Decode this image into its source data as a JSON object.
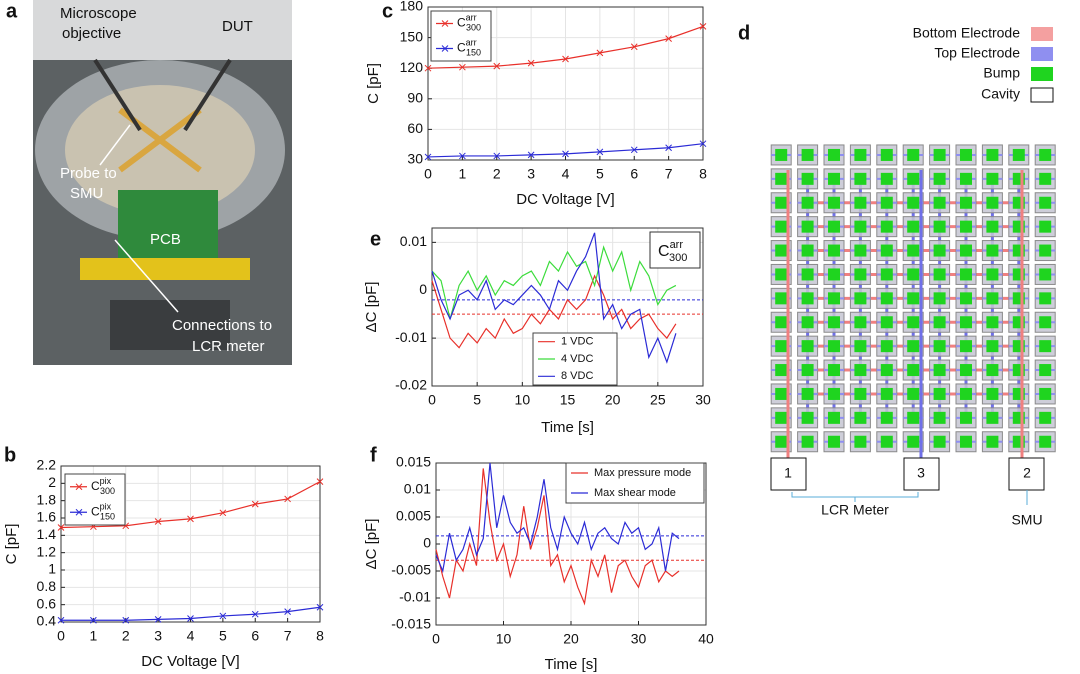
{
  "panel_labels": [
    "a",
    "b",
    "c",
    "d",
    "e",
    "f"
  ],
  "photo": {
    "annotations": [
      "Microscope",
      "objective",
      "DUT",
      "Probe to",
      "SMU",
      "PCB",
      "Connections to",
      "LCR meter"
    ]
  },
  "diagram": {
    "legend": [
      "Bottom Electrode",
      "Top Electrode",
      "Bump",
      "Cavity"
    ],
    "terminals": [
      "1",
      "3",
      "2"
    ],
    "lcr_label": "LCR Meter",
    "smu_label": "SMU"
  },
  "chart_data": [
    {
      "type": "line",
      "xlabel": "DC Voltage [V]",
      "ylabel": "C [pF]",
      "x": [
        0,
        1,
        2,
        3,
        4,
        5,
        6,
        7,
        8
      ],
      "series": [
        {
          "name": "C",
          "name_superscript": "pix",
          "name_subscript": "300",
          "color": "#e8302a",
          "values": [
            1.49,
            1.5,
            1.51,
            1.56,
            1.59,
            1.66,
            1.76,
            1.82,
            2.02
          ]
        },
        {
          "name": "C",
          "name_superscript": "pix",
          "name_subscript": "150",
          "color": "#2b2bd6",
          "values": [
            0.42,
            0.42,
            0.42,
            0.43,
            0.44,
            0.47,
            0.49,
            0.52,
            0.57
          ]
        }
      ],
      "xlim": [
        0,
        8
      ],
      "ylim": [
        0.4,
        2.2
      ],
      "xticks": [
        0,
        1,
        2,
        3,
        4,
        5,
        6,
        7,
        8
      ],
      "yticks": [
        0.4,
        0.6,
        0.8,
        1,
        1.2,
        1.4,
        1.6,
        1.8,
        2,
        2.2
      ],
      "grid": true,
      "legend": "upper left",
      "markers": true
    },
    {
      "type": "line",
      "xlabel": "DC Voltage [V]",
      "ylabel": "C [pF]",
      "x": [
        0,
        1,
        2,
        3,
        4,
        5,
        6,
        7,
        8
      ],
      "series": [
        {
          "name": "C",
          "name_superscript": "arr",
          "name_subscript": "300",
          "color": "#e8302a",
          "values": [
            120,
            121,
            122,
            125,
            129,
            135,
            141,
            149,
            161
          ]
        },
        {
          "name": "C",
          "name_superscript": "arr",
          "name_subscript": "150",
          "color": "#2b2bd6",
          "values": [
            33,
            34,
            34,
            35,
            36,
            38,
            40,
            42,
            46
          ]
        }
      ],
      "xlim": [
        0,
        8
      ],
      "ylim": [
        30,
        180
      ],
      "xticks": [
        0,
        1,
        2,
        3,
        4,
        5,
        6,
        7,
        8
      ],
      "yticks": [
        30,
        60,
        90,
        120,
        150,
        180
      ],
      "grid": true,
      "legend": "upper left",
      "markers": true
    },
    {
      "type": "line",
      "xlabel": "Time [s]",
      "ylabel": "ΔC [pF]",
      "x": [
        0,
        1,
        2,
        3,
        4,
        5,
        6,
        7,
        8,
        9,
        10,
        11,
        12,
        13,
        14,
        15,
        16,
        17,
        18,
        19,
        20,
        21,
        22,
        23,
        24,
        25,
        26,
        27
      ],
      "series": [
        {
          "name": "1 VDC",
          "color": "#e8302a",
          "values": [
            0.002,
            -0.004,
            -0.01,
            -0.012,
            -0.009,
            -0.011,
            -0.008,
            -0.01,
            -0.006,
            -0.009,
            -0.008,
            -0.005,
            -0.007,
            -0.004,
            -0.006,
            -0.002,
            -0.004,
            -0.002,
            0.003,
            -0.001,
            -0.006,
            -0.004,
            -0.008,
            -0.006,
            -0.005,
            -0.008,
            -0.01,
            -0.007
          ]
        },
        {
          "name": "4 VDC",
          "color": "#3cdc3c",
          "values": [
            0.004,
            0.002,
            -0.006,
            0.001,
            0.004,
            0.0,
            0.003,
            -0.001,
            0.002,
            0.001,
            0.003,
            0.004,
            0.001,
            0.006,
            0.004,
            0.008,
            0.005,
            0.006,
            0.001,
            0.009,
            0.004,
            0.008,
            0.0,
            0.006,
            0.003,
            -0.003,
            0.0,
            0.001
          ]
        },
        {
          "name": "8 VDC",
          "color": "#2b2bd6",
          "values": [
            0.004,
            -0.002,
            -0.006,
            -0.001,
            0.0,
            -0.002,
            0.002,
            -0.004,
            -0.002,
            -0.003,
            -0.001,
            0.001,
            -0.001,
            -0.004,
            0.002,
            0.0,
            0.004,
            0.007,
            0.012,
            -0.006,
            -0.003,
            -0.008,
            -0.005,
            -0.004,
            -0.014,
            -0.01,
            -0.015,
            -0.009
          ]
        }
      ],
      "reference_lines": [
        {
          "value": -0.005,
          "color": "#e8302a"
        },
        {
          "value": -0.002,
          "color": "#2b2bd6"
        }
      ],
      "annotation": {
        "text": "C",
        "superscript": "arr",
        "subscript": "300"
      },
      "xlim": [
        0,
        30
      ],
      "ylim": [
        -0.02,
        0.013
      ],
      "xticks": [
        0,
        5,
        10,
        15,
        20,
        25,
        30
      ],
      "yticks": [
        -0.02,
        -0.01,
        0,
        0.01
      ],
      "grid": true,
      "legend": "lower center",
      "markers": false
    },
    {
      "type": "line",
      "xlabel": "Time [s]",
      "ylabel": "ΔC [pF]",
      "x": [
        0,
        1,
        2,
        3,
        4,
        5,
        6,
        7,
        8,
        9,
        10,
        11,
        12,
        13,
        14,
        15,
        16,
        17,
        18,
        19,
        20,
        21,
        22,
        23,
        24,
        25,
        26,
        27,
        28,
        29,
        30,
        31,
        32,
        33,
        34,
        35,
        36
      ],
      "series": [
        {
          "name": "Max pressure mode",
          "color": "#e8302a",
          "values": [
            -0.001,
            -0.006,
            -0.01,
            -0.003,
            -0.005,
            0.0,
            -0.004,
            0.014,
            0.004,
            -0.003,
            0.0,
            -0.006,
            -0.002,
            0.007,
            -0.001,
            0.003,
            0.009,
            -0.004,
            -0.002,
            -0.007,
            -0.004,
            -0.008,
            -0.011,
            -0.003,
            -0.006,
            -0.002,
            -0.009,
            -0.004,
            -0.003,
            -0.006,
            -0.008,
            -0.004,
            -0.003,
            -0.007,
            -0.005,
            -0.006,
            -0.005
          ]
        },
        {
          "name": "Max shear mode",
          "color": "#2b2bd6",
          "values": [
            -0.002,
            -0.005,
            0.002,
            -0.003,
            -0.001,
            0.003,
            -0.002,
            0.001,
            0.015,
            0.003,
            0.009,
            0.004,
            0.002,
            0.003,
            0.0,
            0.005,
            0.012,
            0.003,
            -0.001,
            0.005,
            0.002,
            0.0,
            0.004,
            -0.001,
            0.002,
            0.003,
            0.001,
            0.0,
            0.004,
            0.002,
            0.003,
            -0.001,
            0.0,
            0.003,
            -0.005,
            0.002,
            0.001
          ]
        }
      ],
      "reference_lines": [
        {
          "value": -0.003,
          "color": "#e8302a"
        },
        {
          "value": 0.0015,
          "color": "#2b2bd6"
        }
      ],
      "xlim": [
        0,
        40
      ],
      "ylim": [
        -0.015,
        0.015
      ],
      "xticks": [
        0,
        10,
        20,
        30,
        40
      ],
      "yticks": [
        -0.015,
        -0.01,
        -0.005,
        0,
        0.005,
        0.01,
        0.015
      ],
      "grid": true,
      "legend": "upper right",
      "markers": false
    }
  ]
}
